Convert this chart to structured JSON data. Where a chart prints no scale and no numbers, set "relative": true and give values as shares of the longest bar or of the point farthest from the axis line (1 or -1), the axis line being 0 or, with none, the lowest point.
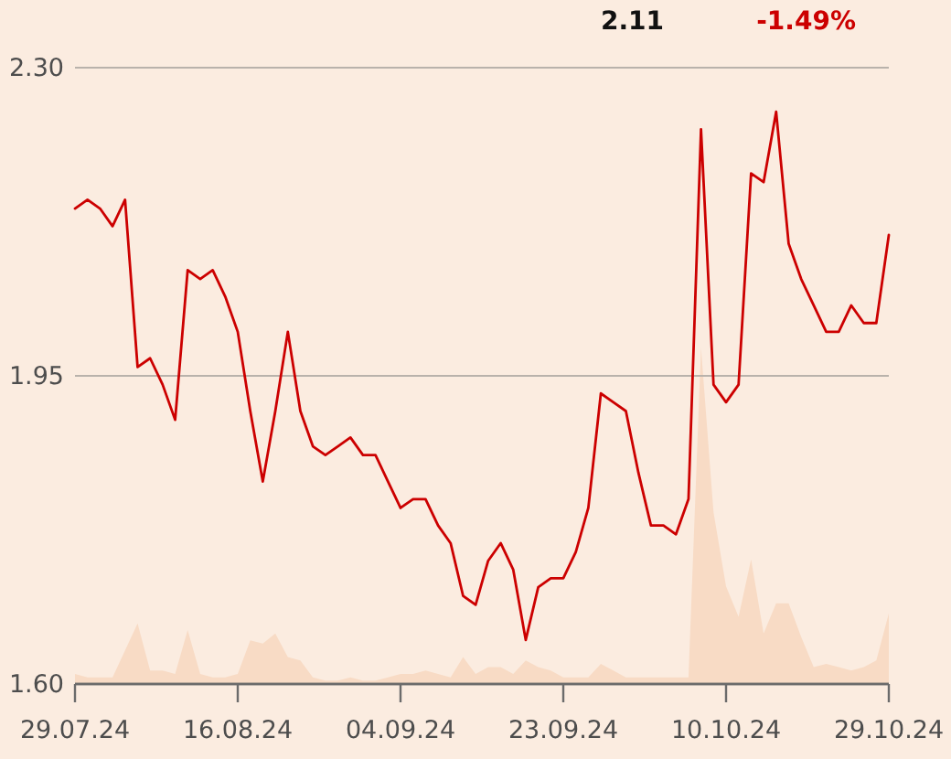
{
  "chart_data": [
    {
      "type": "line",
      "color": "#cc0000",
      "annotations": [
        "2.11",
        "-1.49%"
      ],
      "categories": [
        "29.07.24",
        null,
        null,
        null,
        null,
        null,
        null,
        null,
        null,
        null,
        null,
        null,
        null,
        "16.08.24",
        null,
        null,
        null,
        null,
        null,
        null,
        null,
        null,
        null,
        null,
        null,
        null,
        "04.09.24",
        null,
        null,
        null,
        null,
        null,
        null,
        null,
        null,
        null,
        null,
        null,
        null,
        "23.09.24",
        null,
        null,
        null,
        null,
        null,
        null,
        null,
        null,
        null,
        null,
        null,
        null,
        "10.10.24",
        null,
        null,
        null,
        null,
        null,
        null,
        null,
        null,
        null,
        null,
        null,
        null,
        "29.10.24"
      ],
      "values": [
        2.14,
        2.15,
        2.14,
        2.12,
        2.15,
        1.96,
        1.97,
        1.94,
        1.9,
        2.07,
        2.06,
        2.07,
        2.04,
        2.0,
        1.91,
        1.83,
        1.91,
        2.0,
        1.91,
        1.87,
        1.86,
        1.87,
        1.88,
        1.86,
        1.86,
        1.83,
        1.8,
        1.81,
        1.81,
        1.78,
        1.76,
        1.7,
        1.69,
        1.74,
        1.76,
        1.73,
        1.65,
        1.71,
        1.72,
        1.72,
        1.75,
        1.8,
        1.93,
        1.92,
        1.91,
        1.84,
        1.78,
        1.78,
        1.77,
        1.81,
        2.23,
        1.94,
        1.92,
        1.94,
        2.18,
        2.17,
        2.25,
        2.1,
        2.06,
        2.03,
        2.0,
        2.0,
        2.03,
        2.01,
        2.01,
        2.11
      ],
      "ylim": [
        1.6,
        2.3
      ],
      "yticks": [
        {
          "value": 1.6,
          "label": "1.60"
        },
        {
          "value": 1.95,
          "label": "1.95"
        },
        {
          "value": 2.3,
          "label": "2.30"
        }
      ],
      "grid": "y"
    },
    {
      "type": "area",
      "color": "#f8dbc5",
      "relative": true,
      "categories": [
        null,
        null,
        null,
        null,
        null,
        null,
        null,
        null,
        null,
        null,
        null,
        null,
        null,
        null,
        null,
        null,
        null,
        null,
        null,
        null,
        null,
        null,
        null,
        null,
        null,
        null,
        null,
        null,
        null,
        null,
        null,
        null,
        null,
        null,
        null,
        null,
        null,
        null,
        null,
        null,
        null,
        null,
        null,
        null,
        null,
        null,
        null,
        null,
        null,
        null,
        null,
        null,
        null,
        null,
        null,
        null,
        null,
        null,
        null,
        null,
        null,
        null,
        null,
        null,
        null,
        null
      ],
      "values": [
        0.03,
        0.02,
        0.02,
        0.02,
        0.1,
        0.18,
        0.04,
        0.04,
        0.03,
        0.16,
        0.03,
        0.02,
        0.02,
        0.03,
        0.13,
        0.12,
        0.15,
        0.08,
        0.07,
        0.02,
        0.01,
        0.01,
        0.02,
        0.01,
        0.01,
        0.02,
        0.03,
        0.03,
        0.04,
        0.03,
        0.02,
        0.08,
        0.03,
        0.05,
        0.05,
        0.03,
        0.07,
        0.05,
        0.04,
        0.02,
        0.02,
        0.02,
        0.06,
        0.04,
        0.02,
        0.02,
        0.02,
        0.02,
        0.02,
        0.02,
        1,
        0.51,
        0.29,
        0.2,
        0.37,
        0.15,
        0.24,
        0.24,
        0.14,
        0.05,
        0.06,
        0.05,
        0.04,
        0.05,
        0.07,
        0.21
      ]
    }
  ]
}
